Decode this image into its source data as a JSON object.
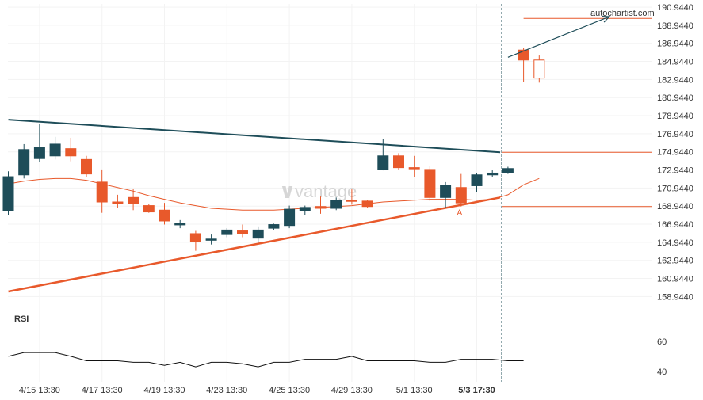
{
  "chart_data": {
    "type": "candlestick",
    "watermark": "vantage",
    "source_label": "autochartist.com",
    "price_axis": {
      "ticks": [
        "190.9440",
        "188.9440",
        "186.9440",
        "184.9440",
        "182.9440",
        "180.9440",
        "178.9440",
        "176.9440",
        "174.9440",
        "172.9440",
        "170.9440",
        "168.9440",
        "166.9440",
        "164.9440",
        "162.9440",
        "160.9440",
        "158.9440"
      ],
      "ylim": [
        157.4,
        191.3
      ]
    },
    "time_axis": {
      "ticks": [
        "4/15 13:30",
        "4/17 13:30",
        "4/19 13:30",
        "4/23 13:30",
        "4/25 13:30",
        "4/29 13:30",
        "5/1 13:30",
        "5/3 17:30"
      ],
      "tick_candle_index": [
        2,
        6,
        10,
        14,
        18,
        22,
        26,
        30
      ]
    },
    "candles": [
      {
        "o": 172.2,
        "h": 172.8,
        "c": 168.4,
        "l": 168.0,
        "dir": "up"
      },
      {
        "o": 172.4,
        "h": 175.8,
        "c": 175.2,
        "l": 172.0,
        "dir": "up"
      },
      {
        "o": 174.2,
        "h": 178.0,
        "c": 175.4,
        "l": 173.8,
        "dir": "up"
      },
      {
        "o": 174.5,
        "h": 176.6,
        "c": 175.8,
        "l": 174.1,
        "dir": "up"
      },
      {
        "o": 175.3,
        "h": 176.5,
        "c": 174.5,
        "l": 173.9,
        "dir": "down"
      },
      {
        "o": 174.1,
        "h": 174.5,
        "c": 172.5,
        "l": 172.2,
        "dir": "down"
      },
      {
        "o": 171.6,
        "h": 173.0,
        "c": 169.4,
        "l": 168.2,
        "dir": "down"
      },
      {
        "o": 169.4,
        "h": 170.2,
        "c": 169.4,
        "l": 168.7,
        "dir": "down"
      },
      {
        "o": 169.9,
        "h": 170.8,
        "c": 169.2,
        "l": 168.5,
        "dir": "down"
      },
      {
        "o": 169.0,
        "h": 169.2,
        "c": 168.3,
        "l": 168.2,
        "dir": "down"
      },
      {
        "o": 168.5,
        "h": 169.3,
        "c": 167.3,
        "l": 166.9,
        "dir": "down"
      },
      {
        "o": 167.0,
        "h": 167.4,
        "c": 167.0,
        "l": 166.5,
        "dir": "up"
      },
      {
        "o": 165.9,
        "h": 166.2,
        "c": 165.0,
        "l": 164.0,
        "dir": "down"
      },
      {
        "o": 165.3,
        "h": 165.8,
        "c": 165.3,
        "l": 164.7,
        "dir": "up"
      },
      {
        "o": 165.8,
        "h": 166.5,
        "c": 166.3,
        "l": 165.5,
        "dir": "up"
      },
      {
        "o": 166.2,
        "h": 166.9,
        "c": 165.9,
        "l": 165.5,
        "dir": "down"
      },
      {
        "o": 165.4,
        "h": 166.7,
        "c": 166.3,
        "l": 164.9,
        "dir": "up"
      },
      {
        "o": 166.5,
        "h": 167.0,
        "c": 166.9,
        "l": 166.3,
        "dir": "up"
      },
      {
        "o": 166.8,
        "h": 169.0,
        "c": 168.6,
        "l": 166.5,
        "dir": "up"
      },
      {
        "o": 168.4,
        "h": 169.0,
        "c": 168.8,
        "l": 168.0,
        "dir": "up"
      },
      {
        "o": 168.9,
        "h": 170.0,
        "c": 168.7,
        "l": 168.1,
        "dir": "down"
      },
      {
        "o": 168.7,
        "h": 169.9,
        "c": 169.6,
        "l": 168.5,
        "dir": "up"
      },
      {
        "o": 169.6,
        "h": 170.8,
        "c": 169.6,
        "l": 169.1,
        "dir": "down"
      },
      {
        "o": 169.5,
        "h": 169.6,
        "c": 168.9,
        "l": 168.7,
        "dir": "down"
      },
      {
        "o": 173.0,
        "h": 176.4,
        "c": 174.5,
        "l": 172.9,
        "dir": "up"
      },
      {
        "o": 174.5,
        "h": 174.8,
        "c": 173.2,
        "l": 172.9,
        "dir": "down"
      },
      {
        "o": 173.2,
        "h": 174.5,
        "c": 173.1,
        "l": 172.2,
        "dir": "down"
      },
      {
        "o": 173.0,
        "h": 173.4,
        "c": 169.9,
        "l": 169.5,
        "dir": "down"
      },
      {
        "o": 169.9,
        "h": 171.6,
        "c": 171.2,
        "l": 168.8,
        "dir": "up"
      },
      {
        "o": 171.0,
        "h": 172.5,
        "c": 169.3,
        "l": 168.9,
        "dir": "down"
      },
      {
        "o": 171.2,
        "h": 172.6,
        "c": 172.4,
        "l": 170.5,
        "dir": "up"
      },
      {
        "o": 172.4,
        "h": 172.9,
        "c": 172.6,
        "l": 172.2,
        "dir": "up"
      },
      {
        "o": 172.6,
        "h": 173.3,
        "c": 173.1,
        "l": 172.5,
        "dir": "up"
      },
      {
        "o": 186.2,
        "h": 186.4,
        "c": 185.1,
        "l": 182.7,
        "dir": "down"
      },
      {
        "o": 183.1,
        "h": 185.6,
        "c": 185.1,
        "l": 182.6,
        "dir": "down"
      }
    ],
    "moving_average": [
      171.4,
      171.7,
      171.9,
      172.0,
      172.0,
      171.8,
      171.4,
      171.0,
      170.6,
      170.1,
      169.7,
      169.3,
      169.0,
      168.7,
      168.6,
      168.5,
      168.5,
      168.5,
      168.6,
      168.7,
      168.8,
      168.9,
      169.0,
      169.2,
      169.4,
      169.5,
      169.6,
      169.7,
      169.7,
      169.7,
      169.6,
      169.7,
      170.2,
      171.3,
      172.0
    ],
    "upper_trendline": {
      "from": [
        0,
        178.5
      ],
      "to": [
        31.5,
        174.9
      ],
      "color": "#1e4d59"
    },
    "lower_trendline": {
      "from": [
        0,
        159.5
      ],
      "to": [
        31.5,
        169.9
      ],
      "color": "#e8592b"
    },
    "resistance_level": {
      "value": 174.9
    },
    "support_level": {
      "value": 168.9
    },
    "target_level": {
      "value": 189.7
    },
    "projection_arrow": {
      "from": [
        32.0,
        185.4
      ],
      "to": [
        38.5,
        189.9
      ]
    },
    "pattern_point_label": "A",
    "pattern_point": {
      "index": 28.9,
      "value": 168.3
    },
    "event_index": 31.6,
    "rsi": {
      "label": "RSI",
      "ticks": [
        "60",
        "40"
      ],
      "ylim": [
        33,
        70
      ],
      "values": [
        50,
        52.5,
        52.5,
        52.5,
        50,
        47,
        47,
        47,
        46,
        46,
        44,
        46,
        43,
        46,
        46,
        45,
        43,
        46,
        46,
        48,
        48,
        48,
        50,
        47,
        47,
        47,
        47,
        46,
        46,
        48,
        48,
        48,
        47,
        47
      ]
    },
    "colors": {
      "bull": "#1e4d59",
      "bear": "#e8592b",
      "grid": "#f3f3f3",
      "axis_text": "#333333",
      "level_line": "#e8592b",
      "event_line": "#1e4d59",
      "watermark": "#d6d6d6"
    },
    "grid": true
  }
}
